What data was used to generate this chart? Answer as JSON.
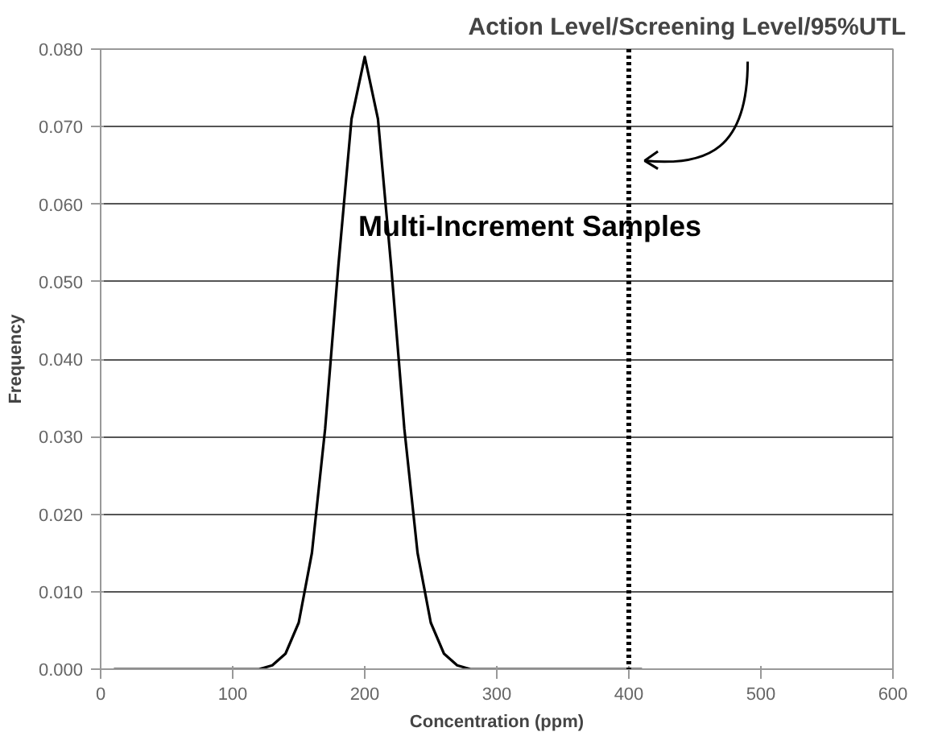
{
  "chart_data": {
    "type": "line",
    "xlabel": "Concentration (ppm)",
    "ylabel": "Frequency",
    "x": [
      10,
      20,
      30,
      40,
      50,
      60,
      70,
      80,
      90,
      100,
      110,
      120,
      130,
      140,
      150,
      160,
      170,
      180,
      190,
      200,
      210,
      220,
      230,
      240,
      250,
      260,
      270,
      280,
      290,
      300,
      310,
      320,
      330,
      340,
      350,
      360,
      370,
      380,
      390,
      400,
      410
    ],
    "series": [
      {
        "color": "#000000",
        "values": [
          0,
          0,
          0,
          0,
          0,
          0,
          0,
          0,
          0,
          0,
          0,
          0,
          0.0005,
          0.002,
          0.006,
          0.015,
          0.031,
          0.052,
          0.071,
          0.079,
          0.071,
          0.052,
          0.031,
          0.015,
          0.006,
          0.002,
          0.0005,
          0,
          0,
          0,
          0,
          0,
          0,
          0,
          0,
          0,
          0,
          0,
          0,
          0,
          0
        ]
      }
    ],
    "xlim": [
      0,
      600
    ],
    "xticks": [
      0,
      100,
      200,
      300,
      400,
      500,
      600
    ],
    "ylim": [
      0,
      0.08
    ],
    "yticks": [
      {
        "value": 0,
        "label": "0.000"
      },
      {
        "value": 0.01,
        "label": "0.010"
      },
      {
        "value": 0.02,
        "label": "0.020"
      },
      {
        "value": 0.03,
        "label": "0.030"
      },
      {
        "value": 0.04,
        "label": "0.040"
      },
      {
        "value": 0.05,
        "label": "0.050"
      },
      {
        "value": 0.06,
        "label": "0.060"
      },
      {
        "value": 0.07,
        "label": "0.070"
      },
      {
        "value": 0.08,
        "label": "0.080"
      }
    ],
    "ref_lines": [
      {
        "axis": "x",
        "value": 400,
        "label": "Action Level/Screening Level/95%UTL",
        "line_style": "dotted",
        "color": "#000000"
      }
    ],
    "annotations": [
      "Multi-Increment Samples"
    ],
    "grid": "y",
    "marker": "none",
    "line_style": "solid"
  }
}
